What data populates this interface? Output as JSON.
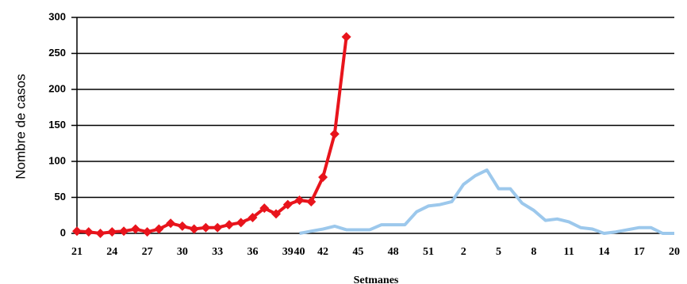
{
  "chart_data": {
    "type": "line",
    "y_label": "Nombre de casos",
    "x_label": "Setmanes",
    "categories": [
      "21",
      null,
      null,
      "24",
      null,
      null,
      "27",
      null,
      null,
      "30",
      null,
      null,
      "33",
      null,
      null,
      "36",
      null,
      null,
      "39",
      "40",
      null,
      "42",
      null,
      null,
      "45",
      null,
      null,
      "48",
      null,
      null,
      "51",
      null,
      null,
      "2",
      null,
      null,
      "5",
      null,
      null,
      "8",
      null,
      null,
      "11",
      null,
      null,
      "14",
      null,
      null,
      "17",
      null,
      null,
      "20"
    ],
    "series": [
      {
        "color": "#e8141c",
        "marker": "diamond",
        "values": [
          3,
          2,
          0,
          2,
          3,
          6,
          2,
          6,
          14,
          10,
          6,
          8,
          8,
          12,
          15,
          22,
          35,
          27,
          40,
          46,
          44,
          78,
          138,
          273,
          null,
          null,
          null,
          null,
          null,
          null,
          null,
          null,
          null,
          null,
          null,
          null,
          null,
          null,
          null,
          null,
          null,
          null,
          null,
          null,
          null,
          null,
          null,
          null,
          null,
          null,
          null,
          null
        ]
      },
      {
        "color": "#9cc8ec",
        "values": [
          null,
          null,
          null,
          null,
          null,
          null,
          null,
          null,
          null,
          null,
          null,
          null,
          null,
          null,
          null,
          null,
          null,
          null,
          null,
          0,
          3,
          6,
          10,
          5,
          5,
          5,
          12,
          12,
          12,
          30,
          38,
          40,
          44,
          68,
          80,
          88,
          62,
          62,
          42,
          32,
          18,
          20,
          16,
          8,
          6,
          0,
          2,
          5,
          8,
          8,
          0,
          0
        ]
      }
    ],
    "ylim": [
      0,
      300
    ],
    "yticks": [
      0,
      50,
      100,
      150,
      200,
      250,
      300
    ],
    "grid": true
  }
}
